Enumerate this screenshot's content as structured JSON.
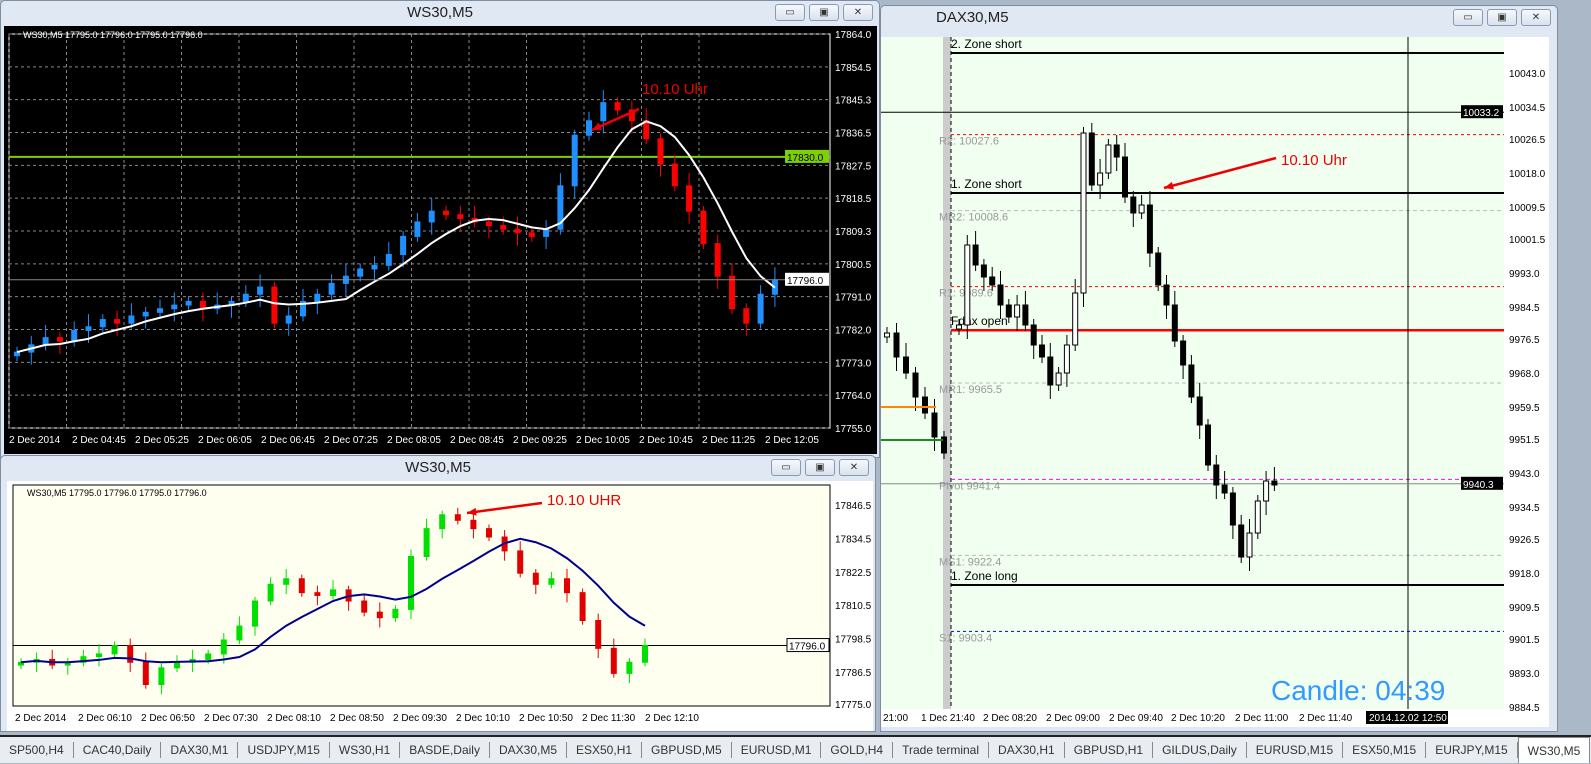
{
  "windows": {
    "ws30_top": {
      "title": "WS30,M5",
      "header": "WS30,M5  17795.0 17796.0 17795.0 17796.0",
      "annotation": "10.10 Uhr",
      "price_ticks": [
        "17864.0",
        "17854.5",
        "17845.3",
        "17836.5",
        "17827.5",
        "17818.5",
        "17809.3",
        "17800.5",
        "17791.0",
        "17782.0",
        "17773.0",
        "17764.0",
        "17755.0"
      ],
      "price_range": [
        17755,
        17864
      ],
      "time_ticks": [
        "2 Dec 2014",
        "2 Dec 04:45",
        "2 Dec 05:25",
        "2 Dec 06:05",
        "2 Dec 06:45",
        "2 Dec 07:25",
        "2 Dec 08:05",
        "2 Dec 08:45",
        "2 Dec 09:25",
        "2 Dec 10:05",
        "2 Dec 10:45",
        "2 Dec 11:25",
        "2 Dec 12:05"
      ],
      "level_line": {
        "price": 17830.0,
        "label": "17830.0",
        "color": "#7fd000"
      },
      "current_price": {
        "price": 17796.0,
        "label": "17796.0"
      },
      "colors": {
        "bull": "#1e90ff",
        "bear": "#ff0000",
        "ma": "#ffffff",
        "bg": "#000000"
      },
      "closes": [
        17776,
        17778,
        17780,
        17779,
        17782,
        17783,
        17785,
        17784,
        17786,
        17787,
        17788,
        17789,
        17790,
        17788,
        17789,
        17790,
        17792,
        17794,
        17784,
        17786,
        17790,
        17792,
        17795,
        17797,
        17799,
        17800,
        17803,
        17808,
        17812,
        17815,
        17814,
        17813,
        17812,
        17811,
        17810,
        17809,
        17808,
        17810,
        17822,
        17836,
        17840,
        17845,
        17843,
        17840,
        17835,
        17828,
        17822,
        17815,
        17806,
        17797,
        17788,
        17784,
        17792,
        17796
      ]
    },
    "ws30_bottom": {
      "title": "WS30,M5",
      "header": "WS30,M5  17795.0 17796.0 17795.0 17796.0",
      "annotation": "10.10 UHR",
      "price_ticks": [
        "17846.5",
        "17834.5",
        "17822.5",
        "17810.5",
        "17798.5",
        "17786.5",
        "17775.0"
      ],
      "price_range": [
        17775,
        17846.5
      ],
      "time_ticks": [
        "2 Dec 2014",
        "2 Dec 06:10",
        "2 Dec 06:50",
        "2 Dec 07:30",
        "2 Dec 08:10",
        "2 Dec 08:50",
        "2 Dec 09:30",
        "2 Dec 10:10",
        "2 Dec 10:50",
        "2 Dec 11:30",
        "2 Dec 12:10"
      ],
      "current_price": {
        "price": 17796.0,
        "label": "17796.0"
      },
      "colors": {
        "bull": "#00e000",
        "bear": "#e00000",
        "ma": "#00008b",
        "bg": "#fffff0"
      },
      "closes": [
        17790,
        17791,
        17789,
        17790,
        17792,
        17793,
        17796,
        17790,
        17782,
        17788,
        17790,
        17791,
        17793,
        17798,
        17803,
        17812,
        17818,
        17820,
        17815,
        17814,
        17816,
        17812,
        17808,
        17806,
        17809,
        17828,
        17838,
        17843,
        17841,
        17838,
        17835,
        17830,
        17822,
        17818,
        17820,
        17815,
        17805,
        17795,
        17786,
        17790,
        17796
      ]
    },
    "dax30": {
      "title": "DAX30,M5",
      "annotation": "10.10 Uhr",
      "price_ticks": [
        "10043.0",
        "10034.5",
        "10026.5",
        "10018.0",
        "10009.5",
        "10001.5",
        "9993.0",
        "9984.5",
        "9976.5",
        "9968.0",
        "9959.5",
        "9951.5",
        "9943.0",
        "9934.5",
        "9926.5",
        "9918.0",
        "9909.5",
        "9901.5",
        "9893.0",
        "9884.5"
      ],
      "price_range": [
        9884.5,
        10043
      ],
      "time_ticks": [
        "21:00",
        "1 Dec 21:40",
        "2 Dec 08:20",
        "2 Dec 09:00",
        "2 Dec 09:40",
        "2 Dec 10:20",
        "2 Dec 11:00",
        "2 Dec 11:40"
      ],
      "crosshair": {
        "price_label": "10033.2",
        "time_label": "2014.12.02 12:50",
        "price": 10033.2
      },
      "current_price": {
        "price": 9940.3,
        "label": "9940.3"
      },
      "levels": [
        {
          "label": "2. Zone short",
          "price": 10048,
          "style": "zone"
        },
        {
          "label": "R2: 10027.6",
          "price": 10027.6,
          "style": "red-dot"
        },
        {
          "label": "1. Zone short",
          "price": 10013,
          "style": "zone"
        },
        {
          "label": "MR2: 10008.6",
          "price": 10008.6,
          "style": "gray-dash"
        },
        {
          "label": "R1: 9989.6",
          "price": 9989.6,
          "style": "red-dot"
        },
        {
          "label": "Fdax open",
          "price": 9978.7,
          "style": "red-thick"
        },
        {
          "label": "MR1: 9965.5",
          "price": 9965.5,
          "style": "gray-dash"
        },
        {
          "label": "Pivot 9941.4",
          "price": 9941.4,
          "style": "magenta-dash"
        },
        {
          "label": "MS1: 9922.4",
          "price": 9922.4,
          "style": "gray-dash"
        },
        {
          "label": "1. Zone long",
          "price": 9915,
          "style": "zone"
        },
        {
          "label": "S1: 9903.4",
          "price": 9903.4,
          "style": "blue-dot"
        }
      ],
      "candle_timer": "Candle:  04:39",
      "colors": {
        "bg": "#f0fff0",
        "timer": "#3399ff"
      },
      "prev_day_closes": [
        9978,
        9972,
        9968,
        9962,
        9958,
        9952,
        9948
      ],
      "closes": [
        9980,
        10000,
        9995,
        9992,
        9990,
        9985,
        9982,
        9985,
        9980,
        9975,
        9972,
        9965,
        9968,
        9975,
        9988,
        10028,
        10015,
        10018,
        10025,
        10022,
        10012,
        10008,
        10010,
        9998,
        9990,
        9985,
        9976,
        9970,
        9962,
        9955,
        9945,
        9940,
        9938,
        9930,
        9922,
        9928,
        9936,
        9941,
        9940
      ]
    }
  },
  "tabs": [
    {
      "label": "SP500,H4"
    },
    {
      "label": "CAC40,Daily"
    },
    {
      "label": "DAX30,M1"
    },
    {
      "label": "USDJPY,M15"
    },
    {
      "label": "WS30,H1"
    },
    {
      "label": "BASDE,Daily"
    },
    {
      "label": "DAX30,M5"
    },
    {
      "label": "ESX50,H1"
    },
    {
      "label": "GBPUSD,M5"
    },
    {
      "label": "EURUSD,M1"
    },
    {
      "label": "GOLD,H4"
    },
    {
      "label": "Trade terminal"
    },
    {
      "label": "DAX30,H1"
    },
    {
      "label": "GBPUSD,H1"
    },
    {
      "label": "GILDUS,Daily"
    },
    {
      "label": "EURUSD,M15"
    },
    {
      "label": "ESX50,M15"
    },
    {
      "label": "EURJPY,M15"
    },
    {
      "label": "WS30,M5",
      "active": true
    },
    {
      "label": "WS30,M5"
    }
  ]
}
